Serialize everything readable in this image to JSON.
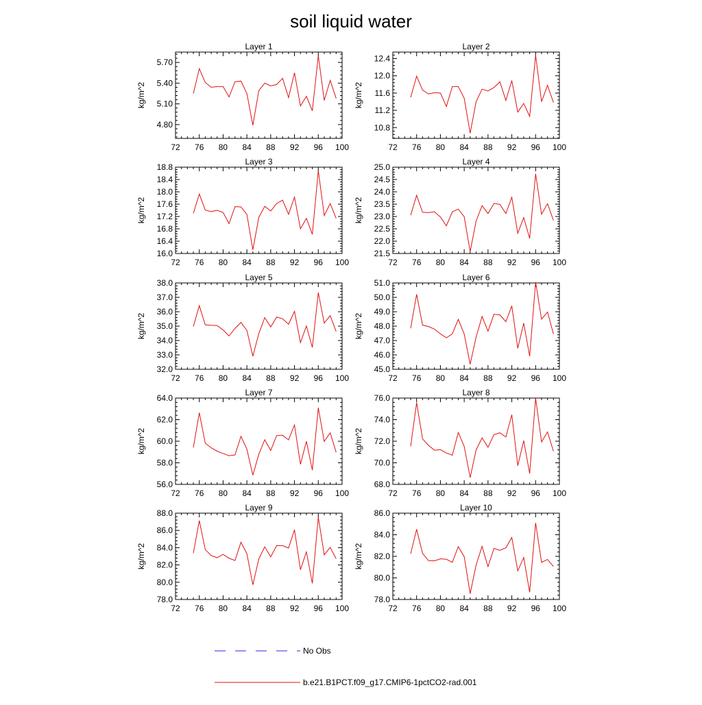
{
  "title": "soil liquid water",
  "legend": [
    {
      "label": "No Obs",
      "color": "#2a2adc",
      "style": "dashed"
    },
    {
      "label": "b.e21.B1PCT.f09_g17.CMIP6-1pctCO2-rad.001",
      "color": "#e01010",
      "style": "solid"
    }
  ],
  "chart_data": [
    {
      "type": "line",
      "title": "Layer 1",
      "ylabel": "kg/m^2",
      "x": [
        75,
        76,
        77,
        78,
        79,
        80,
        81,
        82,
        83,
        84,
        85,
        86,
        87,
        88,
        89,
        90,
        91,
        92,
        93,
        94,
        95,
        96,
        97,
        98,
        99
      ],
      "xlim": [
        72,
        100
      ],
      "xticks": [
        72,
        76,
        80,
        84,
        88,
        92,
        96,
        100
      ],
      "xticklabels": [
        "72",
        "76",
        "80",
        "84",
        "88",
        "92",
        "96",
        "100"
      ],
      "ylim": [
        4.6,
        5.85
      ],
      "yticks": [
        4.8,
        5.1,
        5.4,
        5.7
      ],
      "yticklabels": [
        "4.80",
        "5.10",
        "5.40",
        "5.70"
      ],
      "series": [
        {
          "color": "#e01010",
          "values": [
            5.25,
            5.61,
            5.41,
            5.34,
            5.35,
            5.35,
            5.2,
            5.42,
            5.43,
            5.25,
            4.79,
            5.29,
            5.4,
            5.36,
            5.38,
            5.47,
            5.19,
            5.55,
            5.07,
            5.21,
            5.0,
            5.8,
            5.15,
            5.44,
            5.18
          ]
        }
      ]
    },
    {
      "type": "line",
      "title": "Layer 2",
      "ylabel": "kg/m^2",
      "x": [
        75,
        76,
        77,
        78,
        79,
        80,
        81,
        82,
        83,
        84,
        85,
        86,
        87,
        88,
        89,
        90,
        91,
        92,
        93,
        94,
        95,
        96,
        97,
        98,
        99
      ],
      "xlim": [
        72,
        100
      ],
      "xticks": [
        72,
        76,
        80,
        84,
        88,
        92,
        96,
        100
      ],
      "xticklabels": [
        "72",
        "76",
        "80",
        "84",
        "88",
        "92",
        "96",
        "100"
      ],
      "ylim": [
        10.55,
        12.55
      ],
      "yticks": [
        10.8,
        11.2,
        11.6,
        12.0,
        12.4
      ],
      "yticklabels": [
        "10.8",
        "11.2",
        "11.6",
        "12.0",
        "12.4"
      ],
      "series": [
        {
          "color": "#e01010",
          "values": [
            11.5,
            11.99,
            11.67,
            11.58,
            11.61,
            11.6,
            11.29,
            11.75,
            11.75,
            11.48,
            10.67,
            11.4,
            11.69,
            11.65,
            11.73,
            11.86,
            11.43,
            11.89,
            11.16,
            11.36,
            11.06,
            12.48,
            11.4,
            11.78,
            11.38
          ]
        }
      ]
    },
    {
      "type": "line",
      "title": "Layer 3",
      "ylabel": "kg/m^2",
      "x": [
        75,
        76,
        77,
        78,
        79,
        80,
        81,
        82,
        83,
        84,
        85,
        86,
        87,
        88,
        89,
        90,
        91,
        92,
        93,
        94,
        95,
        96,
        97,
        98,
        99
      ],
      "xlim": [
        72,
        100
      ],
      "xticks": [
        72,
        76,
        80,
        84,
        88,
        92,
        96,
        100
      ],
      "xticklabels": [
        "72",
        "76",
        "80",
        "84",
        "88",
        "92",
        "96",
        "100"
      ],
      "ylim": [
        16.0,
        18.8
      ],
      "yticks": [
        16.0,
        16.4,
        16.8,
        17.2,
        17.6,
        18.0,
        18.4,
        18.8
      ],
      "yticklabels": [
        "16.0",
        "16.4",
        "16.8",
        "17.2",
        "17.6",
        "18.0",
        "18.4",
        "18.8"
      ],
      "series": [
        {
          "color": "#e01010",
          "values": [
            17.3,
            17.93,
            17.41,
            17.36,
            17.4,
            17.33,
            16.97,
            17.52,
            17.51,
            17.27,
            16.12,
            17.17,
            17.53,
            17.38,
            17.62,
            17.73,
            17.27,
            17.83,
            16.8,
            17.14,
            16.62,
            18.69,
            17.23,
            17.62,
            17.14
          ]
        }
      ]
    },
    {
      "type": "line",
      "title": "Layer 4",
      "ylabel": "kg/m^2",
      "x": [
        75,
        76,
        77,
        78,
        79,
        80,
        81,
        82,
        83,
        84,
        85,
        86,
        87,
        88,
        89,
        90,
        91,
        92,
        93,
        94,
        95,
        96,
        97,
        98,
        99
      ],
      "xlim": [
        72,
        100
      ],
      "xticks": [
        72,
        76,
        80,
        84,
        88,
        92,
        96,
        100
      ],
      "xticklabels": [
        "72",
        "76",
        "80",
        "84",
        "88",
        "92",
        "96",
        "100"
      ],
      "ylim": [
        21.5,
        25.0
      ],
      "yticks": [
        21.5,
        22.0,
        22.5,
        23.0,
        23.5,
        24.0,
        24.5,
        25.0
      ],
      "yticklabels": [
        "21.5",
        "22.0",
        "22.5",
        "23.0",
        "23.5",
        "24.0",
        "24.5",
        "25.0"
      ],
      "series": [
        {
          "color": "#e01010",
          "values": [
            23.05,
            23.86,
            23.17,
            23.16,
            23.19,
            22.98,
            22.62,
            23.19,
            23.3,
            22.99,
            21.58,
            22.82,
            23.44,
            23.12,
            23.53,
            23.49,
            23.12,
            23.78,
            22.32,
            22.96,
            22.11,
            24.73,
            23.09,
            23.52,
            22.84
          ]
        }
      ]
    },
    {
      "type": "line",
      "title": "Layer 5",
      "ylabel": "kg/m^2",
      "x": [
        75,
        76,
        77,
        78,
        79,
        80,
        81,
        82,
        83,
        84,
        85,
        86,
        87,
        88,
        89,
        90,
        91,
        92,
        93,
        94,
        95,
        96,
        97,
        98,
        99
      ],
      "xlim": [
        72,
        100
      ],
      "xticks": [
        72,
        76,
        80,
        84,
        88,
        92,
        96,
        100
      ],
      "xticklabels": [
        "72",
        "76",
        "80",
        "84",
        "88",
        "92",
        "96",
        "100"
      ],
      "ylim": [
        32.0,
        38.0
      ],
      "yticks": [
        32.0,
        33.0,
        34.0,
        35.0,
        36.0,
        37.0,
        38.0
      ],
      "yticklabels": [
        "32.0",
        "33.0",
        "34.0",
        "35.0",
        "36.0",
        "37.0",
        "38.0"
      ],
      "series": [
        {
          "color": "#e01010",
          "values": [
            34.97,
            36.42,
            35.09,
            35.06,
            35.04,
            34.73,
            34.32,
            34.84,
            35.26,
            34.7,
            32.91,
            34.48,
            35.59,
            34.94,
            35.63,
            35.51,
            35.13,
            36.03,
            33.85,
            35.01,
            33.52,
            37.33,
            35.21,
            35.73,
            34.63
          ]
        }
      ]
    },
    {
      "type": "line",
      "title": "Layer 6",
      "ylabel": "kg/m^2",
      "x": [
        75,
        76,
        77,
        78,
        79,
        80,
        81,
        82,
        83,
        84,
        85,
        86,
        87,
        88,
        89,
        90,
        91,
        92,
        93,
        94,
        95,
        96,
        97,
        98,
        99
      ],
      "xlim": [
        72,
        100
      ],
      "xticks": [
        72,
        76,
        80,
        84,
        88,
        92,
        96,
        100
      ],
      "xticklabels": [
        "72",
        "76",
        "80",
        "84",
        "88",
        "92",
        "96",
        "100"
      ],
      "ylim": [
        45.0,
        51.0
      ],
      "yticks": [
        45.0,
        46.0,
        47.0,
        48.0,
        49.0,
        50.0,
        51.0
      ],
      "yticklabels": [
        "45.0",
        "46.0",
        "47.0",
        "48.0",
        "49.0",
        "50.0",
        "51.0"
      ],
      "series": [
        {
          "color": "#e01010",
          "values": [
            47.85,
            50.21,
            48.07,
            47.97,
            47.79,
            47.46,
            47.19,
            47.46,
            48.47,
            47.45,
            45.35,
            47.24,
            48.67,
            47.65,
            48.82,
            48.78,
            48.31,
            49.41,
            46.46,
            48.21,
            45.91,
            51.06,
            48.48,
            48.98,
            47.45
          ]
        }
      ]
    },
    {
      "type": "line",
      "title": "Layer 7",
      "ylabel": "kg/m^2",
      "x": [
        75,
        76,
        77,
        78,
        79,
        80,
        81,
        82,
        83,
        84,
        85,
        86,
        87,
        88,
        89,
        90,
        91,
        92,
        93,
        94,
        95,
        96,
        97,
        98,
        99
      ],
      "xlim": [
        72,
        100
      ],
      "xticks": [
        72,
        76,
        80,
        84,
        88,
        92,
        96,
        100
      ],
      "xticklabels": [
        "72",
        "76",
        "80",
        "84",
        "88",
        "92",
        "96",
        "100"
      ],
      "ylim": [
        56.0,
        64.0
      ],
      "yticks": [
        56.0,
        58.0,
        60.0,
        62.0,
        64.0
      ],
      "yticklabels": [
        "56.0",
        "58.0",
        "60.0",
        "62.0",
        "64.0"
      ],
      "series": [
        {
          "color": "#e01010",
          "values": [
            59.42,
            62.64,
            59.82,
            59.39,
            59.08,
            58.86,
            58.66,
            58.73,
            60.45,
            59.26,
            56.86,
            58.79,
            60.14,
            59.14,
            60.52,
            60.56,
            60.12,
            61.51,
            57.86,
            59.99,
            57.32,
            63.1,
            59.98,
            60.78,
            58.98
          ]
        }
      ]
    },
    {
      "type": "line",
      "title": "Layer 8",
      "ylabel": "kg/m^2",
      "x": [
        75,
        76,
        77,
        78,
        79,
        80,
        81,
        82,
        83,
        84,
        85,
        86,
        87,
        88,
        89,
        90,
        91,
        92,
        93,
        94,
        95,
        96,
        97,
        98,
        99
      ],
      "xlim": [
        72,
        100
      ],
      "xticks": [
        72,
        76,
        80,
        84,
        88,
        92,
        96,
        100
      ],
      "xticklabels": [
        "72",
        "76",
        "80",
        "84",
        "88",
        "92",
        "96",
        "100"
      ],
      "ylim": [
        68.0,
        76.0
      ],
      "yticks": [
        68.0,
        70.0,
        72.0,
        74.0,
        76.0
      ],
      "yticklabels": [
        "68.0",
        "70.0",
        "72.0",
        "74.0",
        "76.0"
      ],
      "series": [
        {
          "color": "#e01010",
          "values": [
            71.53,
            75.58,
            72.22,
            71.61,
            71.17,
            71.22,
            70.91,
            70.7,
            72.81,
            71.52,
            68.63,
            71.2,
            72.31,
            71.44,
            72.61,
            72.78,
            72.39,
            74.46,
            69.73,
            72.06,
            69.01,
            75.99,
            71.93,
            72.86,
            71.07
          ]
        }
      ]
    },
    {
      "type": "line",
      "title": "Layer 9",
      "ylabel": "kg/m^2",
      "x": [
        75,
        76,
        77,
        78,
        79,
        80,
        81,
        82,
        83,
        84,
        85,
        86,
        87,
        88,
        89,
        90,
        91,
        92,
        93,
        94,
        95,
        96,
        97,
        98,
        99
      ],
      "xlim": [
        72,
        100
      ],
      "xticks": [
        72,
        76,
        80,
        84,
        88,
        92,
        96,
        100
      ],
      "xticklabels": [
        "72",
        "76",
        "80",
        "84",
        "88",
        "92",
        "96",
        "100"
      ],
      "ylim": [
        78.0,
        88.0
      ],
      "yticks": [
        78.0,
        80.0,
        82.0,
        84.0,
        86.0,
        88.0
      ],
      "yticklabels": [
        "78.0",
        "80.0",
        "82.0",
        "84.0",
        "86.0",
        "88.0"
      ],
      "series": [
        {
          "color": "#e01010",
          "values": [
            83.36,
            87.14,
            83.79,
            83.09,
            82.84,
            83.22,
            82.78,
            82.52,
            84.63,
            83.3,
            79.7,
            82.69,
            84.1,
            82.93,
            84.25,
            84.24,
            83.96,
            86.07,
            81.45,
            83.52,
            79.87,
            87.54,
            83.17,
            84.04,
            82.72
          ]
        }
      ]
    },
    {
      "type": "line",
      "title": "Layer 10",
      "ylabel": "kg/m^2",
      "x": [
        75,
        76,
        77,
        78,
        79,
        80,
        81,
        82,
        83,
        84,
        85,
        86,
        87,
        88,
        89,
        90,
        91,
        92,
        93,
        94,
        95,
        96,
        97,
        98,
        99
      ],
      "xlim": [
        72,
        100
      ],
      "xticks": [
        72,
        76,
        80,
        84,
        88,
        92,
        96,
        100
      ],
      "xticklabels": [
        "72",
        "76",
        "80",
        "84",
        "88",
        "92",
        "96",
        "100"
      ],
      "ylim": [
        78.0,
        86.0
      ],
      "yticks": [
        78.0,
        80.0,
        82.0,
        84.0,
        86.0
      ],
      "yticklabels": [
        "78.0",
        "80.0",
        "82.0",
        "84.0",
        "86.0"
      ],
      "series": [
        {
          "color": "#e01010",
          "values": [
            82.24,
            84.51,
            82.27,
            81.6,
            81.58,
            81.77,
            81.73,
            81.44,
            82.9,
            81.97,
            78.54,
            81.2,
            82.92,
            81.05,
            82.73,
            82.56,
            82.79,
            83.75,
            80.66,
            81.89,
            78.67,
            85.1,
            81.44,
            81.71,
            81.06
          ]
        }
      ]
    }
  ]
}
